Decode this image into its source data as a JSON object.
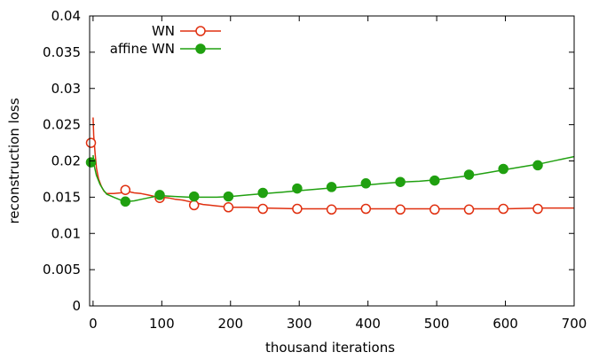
{
  "chart_data": {
    "type": "line",
    "title": "",
    "xlabel": "thousand iterations",
    "ylabel": "reconstruction loss",
    "xlim": [
      -5,
      700
    ],
    "ylim": [
      0,
      0.04
    ],
    "x_ticks": [
      0,
      100,
      200,
      300,
      400,
      500,
      600,
      700
    ],
    "x_tick_labels": [
      "0",
      "100",
      "200",
      "300",
      "400",
      "500",
      "600",
      "700"
    ],
    "y_ticks": [
      0,
      0.005,
      0.01,
      0.015,
      0.02,
      0.025,
      0.03,
      0.035,
      0.04
    ],
    "y_tick_labels": [
      "0",
      "0.005",
      "0.01",
      "0.015",
      "0.02",
      "0.025",
      "0.03",
      "0.035",
      "0.04"
    ],
    "grid": false,
    "legend_position": "top-left",
    "series": [
      {
        "name": "WN",
        "color": "#e03010",
        "marker": "open-circle",
        "curve": [
          [
            0,
            0.026
          ],
          [
            1,
            0.0235
          ],
          [
            3,
            0.021
          ],
          [
            5,
            0.019
          ],
          [
            8,
            0.0175
          ],
          [
            12,
            0.0165
          ],
          [
            16,
            0.0158
          ],
          [
            20,
            0.0155
          ],
          [
            30,
            0.0155
          ],
          [
            40,
            0.0156
          ],
          [
            50,
            0.0158
          ],
          [
            60,
            0.0156
          ],
          [
            70,
            0.0155
          ],
          [
            80,
            0.0153
          ],
          [
            90,
            0.0151
          ],
          [
            100,
            0.015
          ],
          [
            110,
            0.0149
          ],
          [
            120,
            0.0147
          ],
          [
            130,
            0.0146
          ],
          [
            140,
            0.0144
          ],
          [
            150,
            0.0142
          ],
          [
            160,
            0.014
          ],
          [
            170,
            0.0139
          ],
          [
            180,
            0.0138
          ],
          [
            190,
            0.0137
          ],
          [
            200,
            0.0136
          ],
          [
            225,
            0.0136
          ],
          [
            250,
            0.0135
          ],
          [
            300,
            0.0134
          ],
          [
            350,
            0.0134
          ],
          [
            400,
            0.0134
          ],
          [
            450,
            0.0134
          ],
          [
            500,
            0.0134
          ],
          [
            550,
            0.0134
          ],
          [
            600,
            0.0134
          ],
          [
            650,
            0.0135
          ],
          [
            700,
            0.0135
          ]
        ],
        "markers": [
          [
            -3,
            0.0225
          ],
          [
            47,
            0.016
          ],
          [
            97,
            0.0149
          ],
          [
            147,
            0.0139
          ],
          [
            197,
            0.0136
          ],
          [
            247,
            0.0134
          ],
          [
            297,
            0.0134
          ],
          [
            347,
            0.0133
          ],
          [
            397,
            0.0134
          ],
          [
            447,
            0.0133
          ],
          [
            497,
            0.0133
          ],
          [
            547,
            0.0133
          ],
          [
            597,
            0.0134
          ],
          [
            647,
            0.0134
          ]
        ]
      },
      {
        "name": "affine WN",
        "color": "#20a010",
        "marker": "filled-circle",
        "curve": [
          [
            0,
            0.0208
          ],
          [
            2,
            0.0192
          ],
          [
            5,
            0.018
          ],
          [
            10,
            0.0168
          ],
          [
            15,
            0.016
          ],
          [
            20,
            0.0154
          ],
          [
            30,
            0.015
          ],
          [
            40,
            0.0146
          ],
          [
            50,
            0.0144
          ],
          [
            60,
            0.0145
          ],
          [
            70,
            0.0147
          ],
          [
            80,
            0.0149
          ],
          [
            90,
            0.0151
          ],
          [
            100,
            0.0152
          ],
          [
            120,
            0.0151
          ],
          [
            140,
            0.015
          ],
          [
            160,
            0.015
          ],
          [
            180,
            0.015
          ],
          [
            200,
            0.0151
          ],
          [
            225,
            0.0153
          ],
          [
            250,
            0.0155
          ],
          [
            275,
            0.0157
          ],
          [
            300,
            0.0159
          ],
          [
            325,
            0.0161
          ],
          [
            350,
            0.0163
          ],
          [
            375,
            0.0165
          ],
          [
            400,
            0.0167
          ],
          [
            425,
            0.0169
          ],
          [
            450,
            0.0171
          ],
          [
            475,
            0.0172
          ],
          [
            500,
            0.0174
          ],
          [
            525,
            0.0177
          ],
          [
            550,
            0.018
          ],
          [
            575,
            0.0184
          ],
          [
            600,
            0.0188
          ],
          [
            625,
            0.0192
          ],
          [
            650,
            0.0196
          ],
          [
            675,
            0.0201
          ],
          [
            700,
            0.0206
          ]
        ],
        "markers": [
          [
            -3,
            0.0198
          ],
          [
            47,
            0.0144
          ],
          [
            97,
            0.0153
          ],
          [
            147,
            0.0151
          ],
          [
            197,
            0.0151
          ],
          [
            247,
            0.0156
          ],
          [
            297,
            0.0162
          ],
          [
            347,
            0.0164
          ],
          [
            397,
            0.0169
          ],
          [
            447,
            0.0171
          ],
          [
            497,
            0.0173
          ],
          [
            547,
            0.0181
          ],
          [
            597,
            0.0189
          ],
          [
            647,
            0.0194
          ]
        ]
      }
    ]
  }
}
